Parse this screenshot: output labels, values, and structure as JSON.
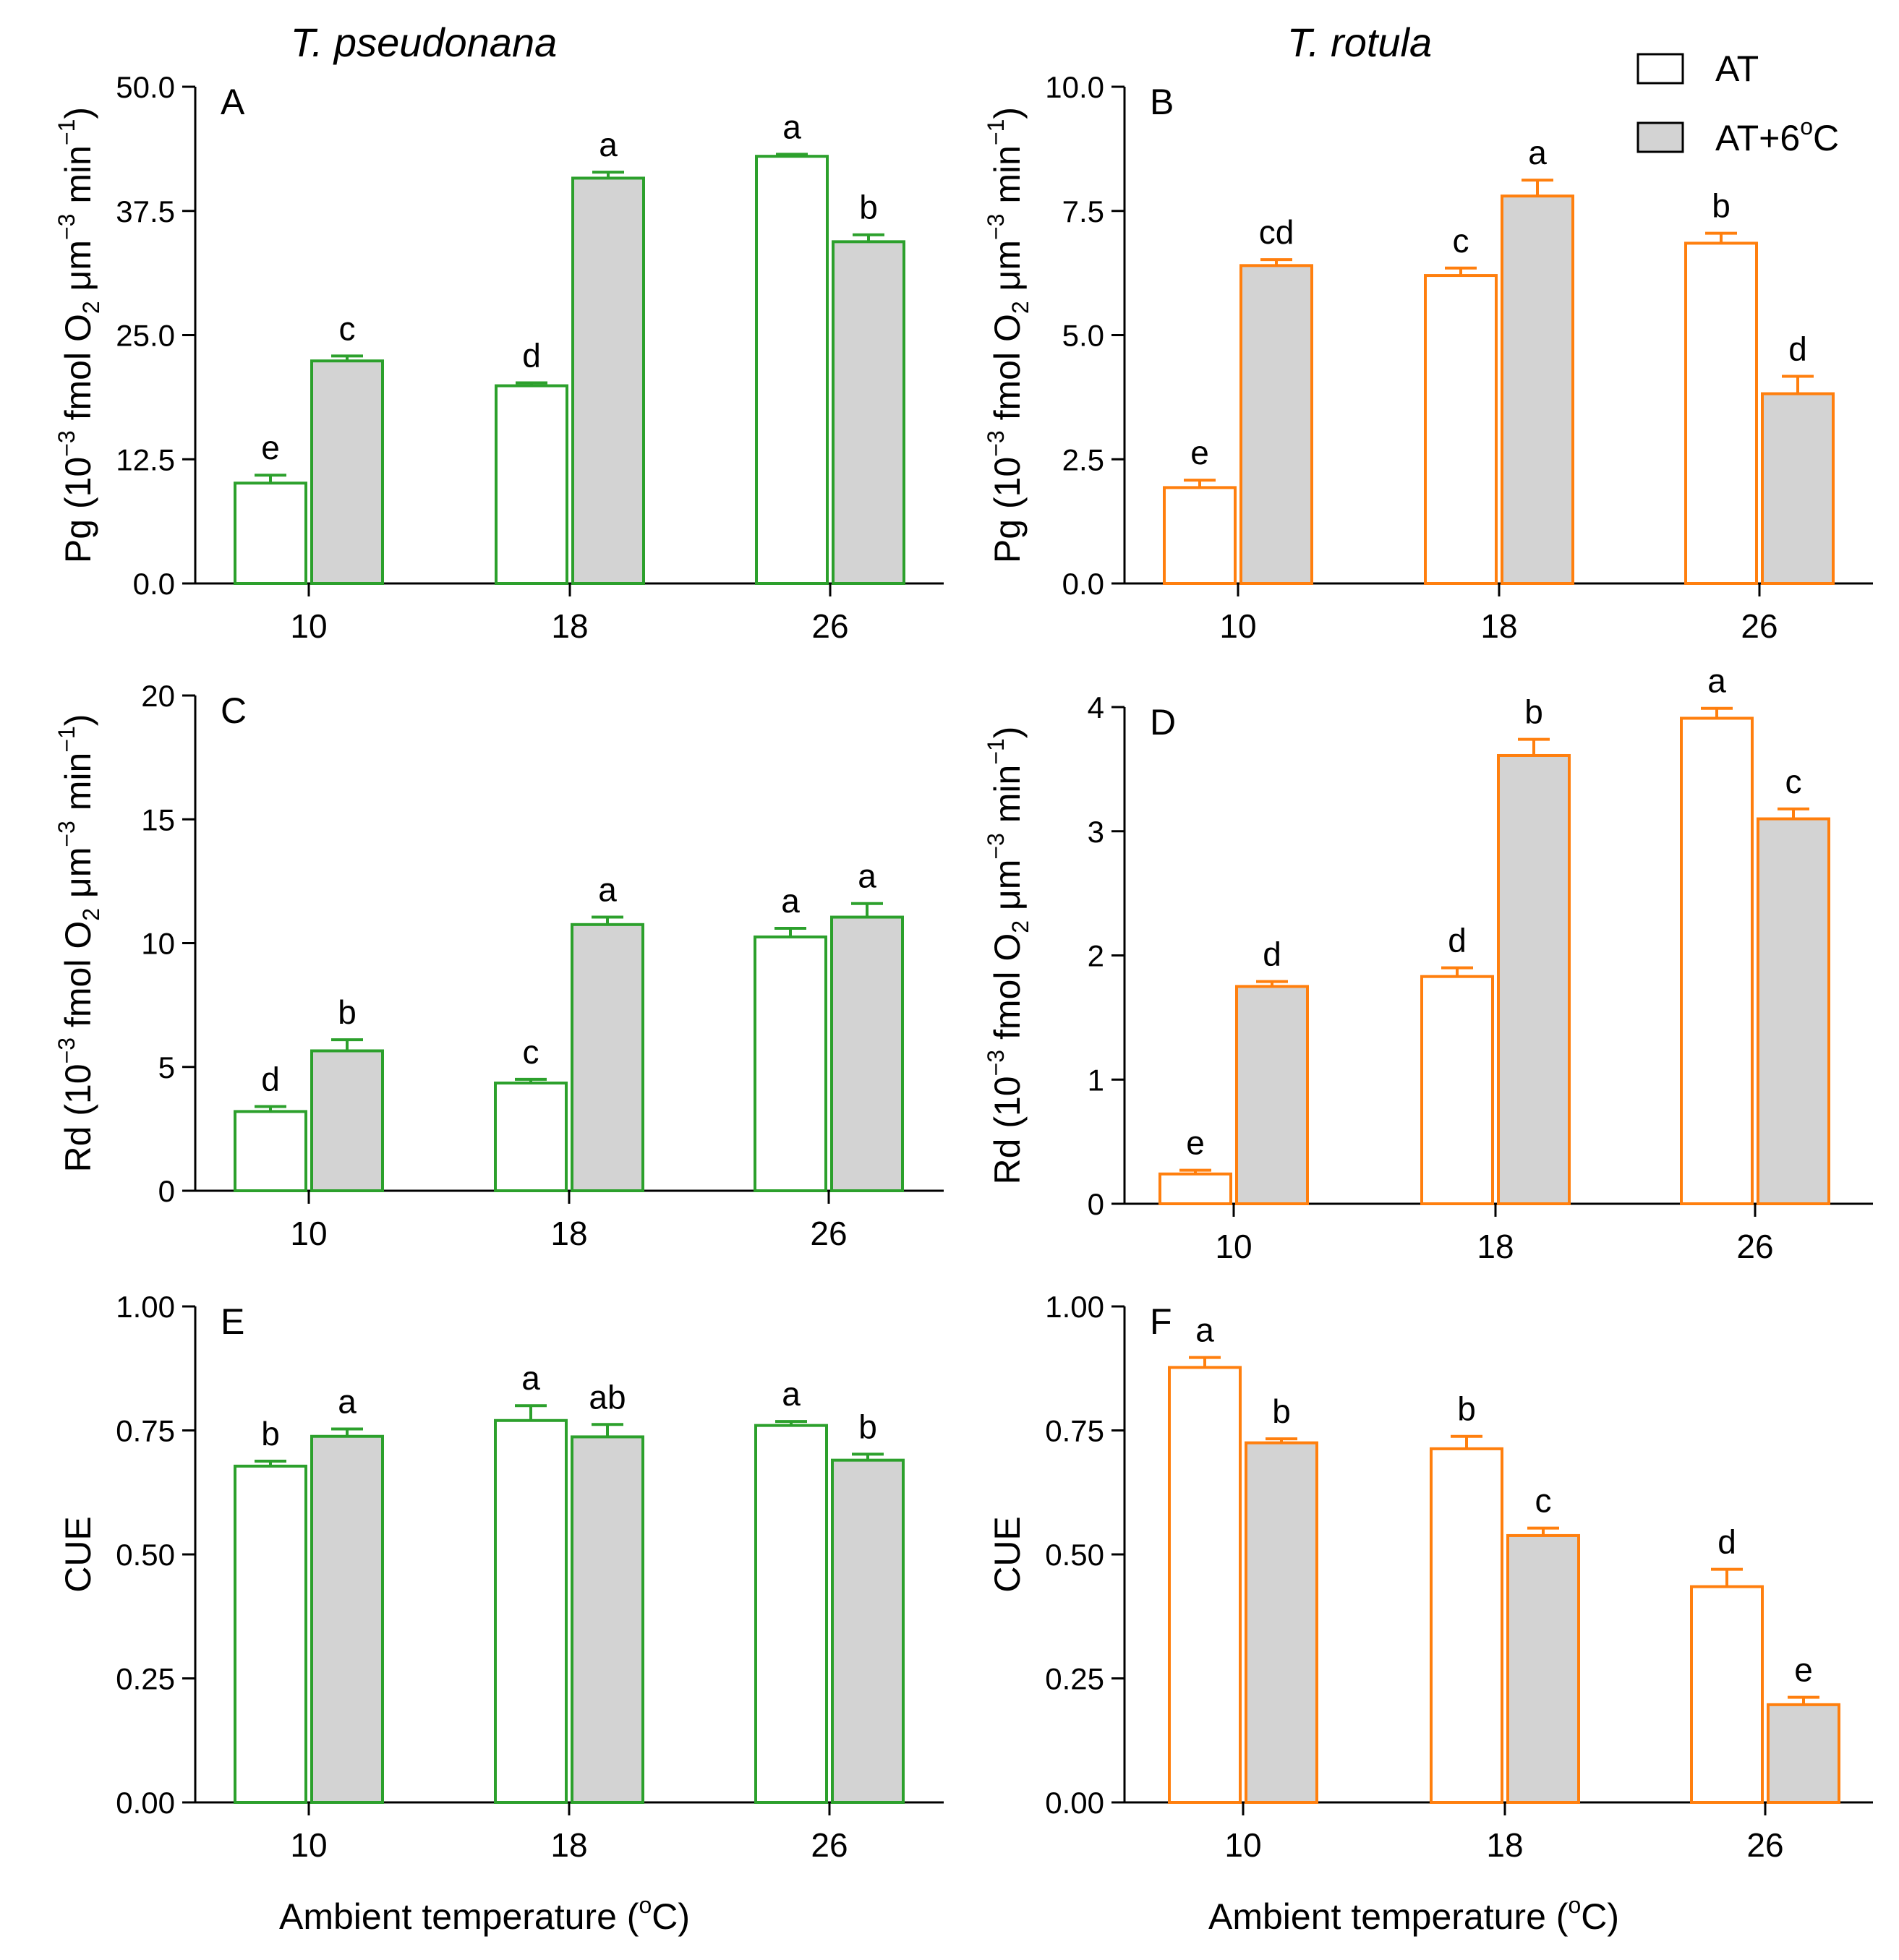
{
  "figure": {
    "columns": [
      {
        "title": "T. pseudonana",
        "color": "#2ca02c"
      },
      {
        "title": "T. rotula",
        "color": "#ff7f0e"
      }
    ],
    "legend": {
      "items": [
        {
          "label": "AT",
          "fill": "#ffffff"
        },
        {
          "label": "AT+6",
          "sup": "o",
          "suffix": "C",
          "fill": "#d3d3d3"
        }
      ]
    },
    "xlabel": {
      "main": "Ambient temperature (",
      "sup": "o",
      "end": "C)"
    },
    "colors": {
      "at_fill": "#ffffff",
      "warm_fill": "#d3d3d3",
      "axis": "#000000"
    }
  },
  "chart_data": [
    {
      "id": "A",
      "type": "bar",
      "panel_label": "A",
      "categories": [
        "10",
        "18",
        "26"
      ],
      "series": [
        {
          "name": "AT",
          "values": [
            10.1,
            19.9,
            43.0
          ],
          "errors": [
            0.8,
            0.3,
            0.2
          ],
          "letters": [
            "e",
            "d",
            "a"
          ]
        },
        {
          "name": "AT+6°C",
          "values": [
            22.4,
            40.8,
            34.4
          ],
          "errors": [
            0.5,
            0.6,
            0.7
          ],
          "letters": [
            "c",
            "a",
            "b"
          ]
        }
      ],
      "ylim": [
        0,
        50
      ],
      "yticks": [
        "0.0",
        "12.5",
        "25.0",
        "37.5",
        "50.0"
      ],
      "ylabel": {
        "p1": "Pg (10",
        "s1": "−3",
        "p2": " fmol O",
        "sub": "2",
        "p3": " μm",
        "s2": "−3",
        "p4": " min",
        "s3": "−1",
        "p5": ")"
      }
    },
    {
      "id": "B",
      "type": "bar",
      "panel_label": "B",
      "categories": [
        "10",
        "18",
        "26"
      ],
      "series": [
        {
          "name": "AT",
          "values": [
            1.93,
            6.2,
            6.85
          ],
          "errors": [
            0.15,
            0.15,
            0.2
          ],
          "letters": [
            "e",
            "c",
            "b"
          ]
        },
        {
          "name": "AT+6°C",
          "values": [
            6.4,
            7.8,
            3.82
          ],
          "errors": [
            0.12,
            0.32,
            0.35
          ],
          "letters": [
            "cd",
            "a",
            "d"
          ]
        }
      ],
      "ylim": [
        0,
        10
      ],
      "yticks": [
        "0.0",
        "2.5",
        "5.0",
        "7.5",
        "10.0"
      ],
      "ylabel": {
        "p1": "Pg (10",
        "s1": "−3",
        "p2": " fmol O",
        "sub": "2",
        "p3": " μm",
        "s2": "−3",
        "p4": " min",
        "s3": "−1",
        "p5": ")"
      }
    },
    {
      "id": "C",
      "type": "bar",
      "panel_label": "C",
      "categories": [
        "10",
        "18",
        "26"
      ],
      "series": [
        {
          "name": "AT",
          "values": [
            3.2,
            4.35,
            10.25
          ],
          "errors": [
            0.2,
            0.15,
            0.35
          ],
          "letters": [
            "d",
            "c",
            "a"
          ]
        },
        {
          "name": "AT+6°C",
          "values": [
            5.65,
            10.75,
            11.05
          ],
          "errors": [
            0.45,
            0.3,
            0.55
          ],
          "letters": [
            "b",
            "a",
            "a"
          ]
        }
      ],
      "ylim": [
        0,
        20
      ],
      "yticks": [
        "0",
        "5",
        "10",
        "15",
        "20"
      ],
      "ylabel": {
        "p1": "Rd (10",
        "s1": "−3",
        "p2": " fmol O",
        "sub": "2",
        "p3": " μm",
        "s2": "−3",
        "p4": " min",
        "s3": "−1",
        "p5": ")"
      }
    },
    {
      "id": "D",
      "type": "bar",
      "panel_label": "D",
      "categories": [
        "10",
        "18",
        "26"
      ],
      "series": [
        {
          "name": "AT",
          "values": [
            0.24,
            1.83,
            3.91
          ],
          "errors": [
            0.03,
            0.07,
            0.08
          ],
          "letters": [
            "e",
            "d",
            "a"
          ]
        },
        {
          "name": "AT+6°C",
          "values": [
            1.75,
            3.61,
            3.1
          ],
          "errors": [
            0.04,
            0.13,
            0.08
          ],
          "letters": [
            "d",
            "b",
            "c"
          ]
        }
      ],
      "ylim": [
        0,
        4
      ],
      "yticks": [
        "0",
        "1",
        "2",
        "3",
        "4"
      ],
      "ylabel": {
        "p1": "Rd (10",
        "s1": "−3",
        "p2": " fmol O",
        "sub": "2",
        "p3": " μm",
        "s2": "−3",
        "p4": " min",
        "s3": "−1",
        "p5": ")"
      }
    },
    {
      "id": "E",
      "type": "bar",
      "panel_label": "E",
      "categories": [
        "10",
        "18",
        "26"
      ],
      "series": [
        {
          "name": "AT",
          "values": [
            0.678,
            0.77,
            0.76
          ],
          "errors": [
            0.01,
            0.03,
            0.008
          ],
          "letters": [
            "b",
            "a",
            "a"
          ]
        },
        {
          "name": "AT+6°C",
          "values": [
            0.738,
            0.737,
            0.69
          ],
          "errors": [
            0.015,
            0.025,
            0.012
          ],
          "letters": [
            "a",
            "ab",
            "b"
          ]
        }
      ],
      "ylim": [
        0,
        1
      ],
      "yticks": [
        "0.00",
        "0.25",
        "0.50",
        "0.75",
        "1.00"
      ],
      "ylabel": {
        "p1": "CUE"
      }
    },
    {
      "id": "F",
      "type": "bar",
      "panel_label": "F",
      "categories": [
        "10",
        "18",
        "26"
      ],
      "series": [
        {
          "name": "AT",
          "values": [
            0.877,
            0.713,
            0.435
          ],
          "errors": [
            0.02,
            0.025,
            0.035
          ],
          "letters": [
            "a",
            "b",
            "d"
          ]
        },
        {
          "name": "AT+6°C",
          "values": [
            0.725,
            0.538,
            0.197
          ],
          "errors": [
            0.008,
            0.015,
            0.015
          ],
          "letters": [
            "b",
            "c",
            "e"
          ]
        }
      ],
      "ylim": [
        0,
        1
      ],
      "yticks": [
        "0.00",
        "0.25",
        "0.50",
        "0.75",
        "1.00"
      ],
      "ylabel": {
        "p1": "CUE"
      }
    }
  ]
}
